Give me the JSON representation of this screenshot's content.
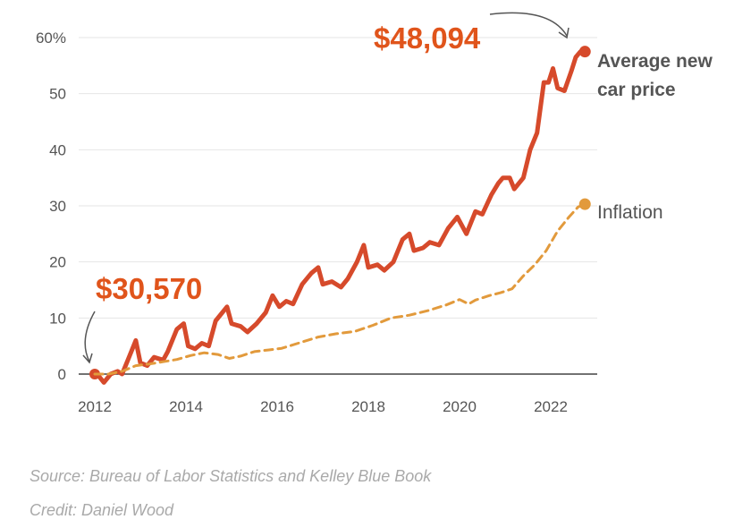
{
  "chart_data": {
    "type": "line",
    "title": "",
    "xlabel": "",
    "ylabel": "",
    "x_ticks": [
      "2012",
      "2014",
      "2016",
      "2018",
      "2020",
      "2022"
    ],
    "y_ticks": [
      "0",
      "10",
      "20",
      "30",
      "40",
      "50",
      "60%"
    ],
    "ylim": [
      0,
      60
    ],
    "xlim": [
      2012,
      2022.8
    ],
    "grid": "horizontal",
    "legend": "direct labels at line ends (right)",
    "series": [
      {
        "name": "Average new car price",
        "color": "#d64a2b",
        "style": "solid",
        "points": [
          [
            2012.0,
            0
          ],
          [
            2012.1,
            -0.5
          ],
          [
            2012.2,
            -1.5
          ],
          [
            2012.35,
            0
          ],
          [
            2012.5,
            0.5
          ],
          [
            2012.6,
            0
          ],
          [
            2012.75,
            3
          ],
          [
            2012.9,
            6
          ],
          [
            2013.0,
            2
          ],
          [
            2013.15,
            1.5
          ],
          [
            2013.3,
            3
          ],
          [
            2013.5,
            2.5
          ],
          [
            2013.6,
            4
          ],
          [
            2013.8,
            8
          ],
          [
            2013.95,
            9
          ],
          [
            2014.05,
            5
          ],
          [
            2014.2,
            4.5
          ],
          [
            2014.35,
            5.5
          ],
          [
            2014.5,
            5
          ],
          [
            2014.65,
            9.5
          ],
          [
            2014.9,
            12
          ],
          [
            2015.0,
            9
          ],
          [
            2015.2,
            8.5
          ],
          [
            2015.35,
            7.5
          ],
          [
            2015.55,
            9
          ],
          [
            2015.75,
            11
          ],
          [
            2015.9,
            14
          ],
          [
            2016.05,
            12
          ],
          [
            2016.2,
            13
          ],
          [
            2016.35,
            12.5
          ],
          [
            2016.55,
            16
          ],
          [
            2016.75,
            18
          ],
          [
            2016.9,
            19
          ],
          [
            2017.0,
            16
          ],
          [
            2017.2,
            16.5
          ],
          [
            2017.4,
            15.5
          ],
          [
            2017.55,
            17
          ],
          [
            2017.75,
            20
          ],
          [
            2017.9,
            23
          ],
          [
            2018.0,
            19
          ],
          [
            2018.2,
            19.5
          ],
          [
            2018.35,
            18.5
          ],
          [
            2018.55,
            20
          ],
          [
            2018.75,
            24
          ],
          [
            2018.9,
            25
          ],
          [
            2019.0,
            22
          ],
          [
            2019.2,
            22.5
          ],
          [
            2019.35,
            23.5
          ],
          [
            2019.55,
            23
          ],
          [
            2019.75,
            26
          ],
          [
            2019.95,
            28
          ],
          [
            2020.15,
            25
          ],
          [
            2020.35,
            29
          ],
          [
            2020.5,
            28.5
          ],
          [
            2020.7,
            32
          ],
          [
            2020.85,
            34
          ],
          [
            2020.95,
            35
          ],
          [
            2021.1,
            35
          ],
          [
            2021.2,
            33
          ],
          [
            2021.4,
            35
          ],
          [
            2021.55,
            40
          ],
          [
            2021.7,
            43
          ],
          [
            2021.85,
            52
          ],
          [
            2021.95,
            52
          ],
          [
            2022.05,
            54.5
          ],
          [
            2022.15,
            51
          ],
          [
            2022.3,
            50.5
          ],
          [
            2022.45,
            54
          ],
          [
            2022.55,
            56.5
          ],
          [
            2022.65,
            57.5
          ],
          [
            2022.75,
            57.5
          ]
        ]
      },
      {
        "name": "Inflation",
        "color": "#e29a3c",
        "style": "dashed",
        "points": [
          [
            2012.0,
            0
          ],
          [
            2012.3,
            0
          ],
          [
            2012.6,
            0.5
          ],
          [
            2012.9,
            1.5
          ],
          [
            2013.2,
            1.8
          ],
          [
            2013.5,
            2.2
          ],
          [
            2013.8,
            2.6
          ],
          [
            2014.1,
            3.3
          ],
          [
            2014.4,
            3.8
          ],
          [
            2014.7,
            3.5
          ],
          [
            2014.95,
            2.8
          ],
          [
            2015.2,
            3.2
          ],
          [
            2015.5,
            4
          ],
          [
            2015.8,
            4.3
          ],
          [
            2016.1,
            4.6
          ],
          [
            2016.5,
            5.6
          ],
          [
            2016.9,
            6.6
          ],
          [
            2017.3,
            7.2
          ],
          [
            2017.7,
            7.6
          ],
          [
            2018.1,
            8.7
          ],
          [
            2018.5,
            10
          ],
          [
            2018.9,
            10.5
          ],
          [
            2019.3,
            11.3
          ],
          [
            2019.7,
            12.3
          ],
          [
            2020.0,
            13.3
          ],
          [
            2020.2,
            12.5
          ],
          [
            2020.35,
            13.2
          ],
          [
            2020.65,
            14
          ],
          [
            2020.9,
            14.5
          ],
          [
            2021.15,
            15.2
          ],
          [
            2021.4,
            17.5
          ],
          [
            2021.65,
            19.5
          ],
          [
            2021.9,
            22
          ],
          [
            2022.15,
            25.5
          ],
          [
            2022.4,
            28
          ],
          [
            2022.6,
            29.8
          ],
          [
            2022.75,
            30.3
          ]
        ]
      }
    ],
    "annotations": [
      {
        "text": "$30,570",
        "point": [
          2012.0,
          0
        ]
      },
      {
        "text": "$48,094",
        "point": [
          2022.75,
          57.5
        ]
      }
    ]
  },
  "labels": {
    "price_line_1": "Average new",
    "price_line_2": "car price",
    "inflation": "Inflation",
    "start_value": "$30,570",
    "end_value": "$48,094"
  },
  "footer": {
    "source": "Source: Bureau of Labor Statistics and Kelley Blue Book",
    "credit": "Credit: Daniel Wood"
  }
}
